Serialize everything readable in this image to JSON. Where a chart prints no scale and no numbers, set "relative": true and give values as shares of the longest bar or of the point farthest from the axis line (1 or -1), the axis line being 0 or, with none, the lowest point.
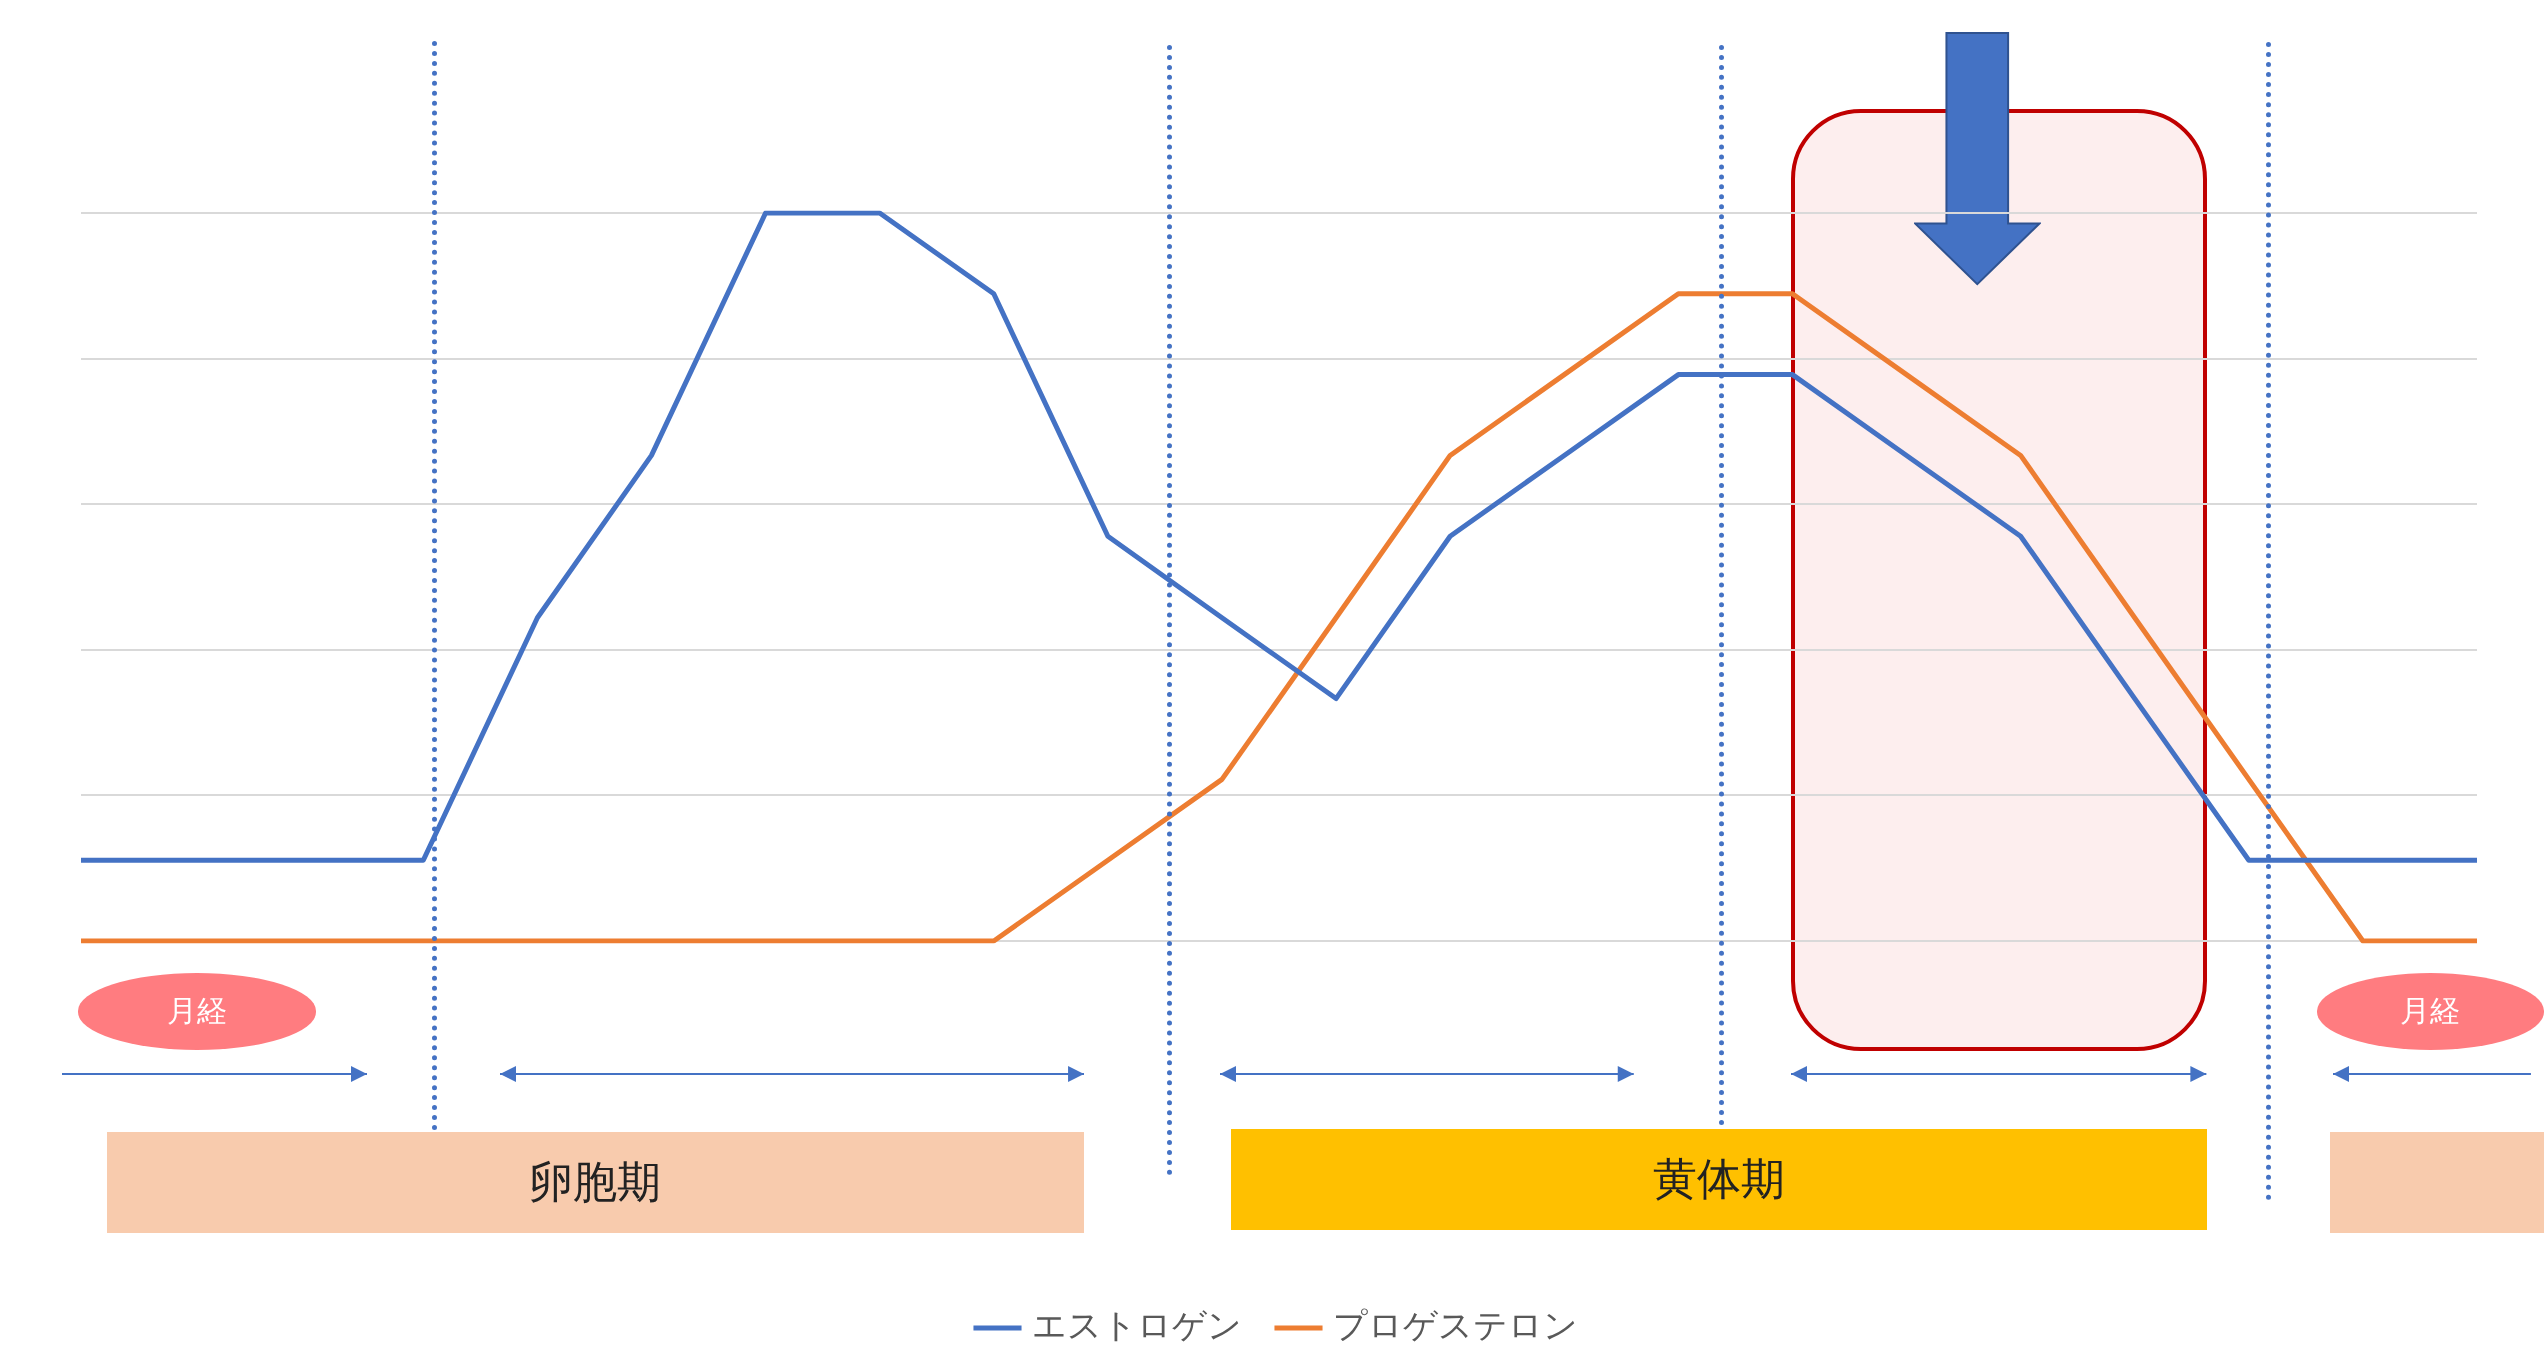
{
  "chart_data": {
    "type": "line",
    "relative": true,
    "grid": "y",
    "legend": "bottom",
    "marker": "none",
    "line_style": "solid",
    "categories": [
      null,
      null,
      null,
      null,
      null,
      null,
      null,
      null,
      null,
      null,
      null,
      null,
      null,
      null,
      null,
      null,
      null,
      null,
      null,
      null,
      null,
      null
    ],
    "series": [
      {
        "name": "エストロゲン",
        "color": "#4472c4",
        "values": [
          0.111,
          0.111,
          0.111,
          0.111,
          0.444,
          0.667,
          1,
          1,
          0.889,
          0.556,
          0.444,
          0.333,
          0.556,
          0.667,
          0.778,
          0.778,
          0.667,
          0.556,
          0.333,
          0.111,
          0.111,
          0.111
        ]
      },
      {
        "name": "プロゲステロン",
        "color": "#ed7d31",
        "values": [
          0,
          0,
          0,
          0,
          0,
          0,
          0,
          0,
          0,
          0.111,
          0.222,
          0.444,
          0.667,
          0.778,
          0.889,
          0.889,
          0.778,
          0.667,
          0.444,
          0.222,
          0,
          0
        ]
      }
    ],
    "annotations": [
      "月経",
      "月経",
      "卵胞期",
      "黄体期"
    ]
  }
}
